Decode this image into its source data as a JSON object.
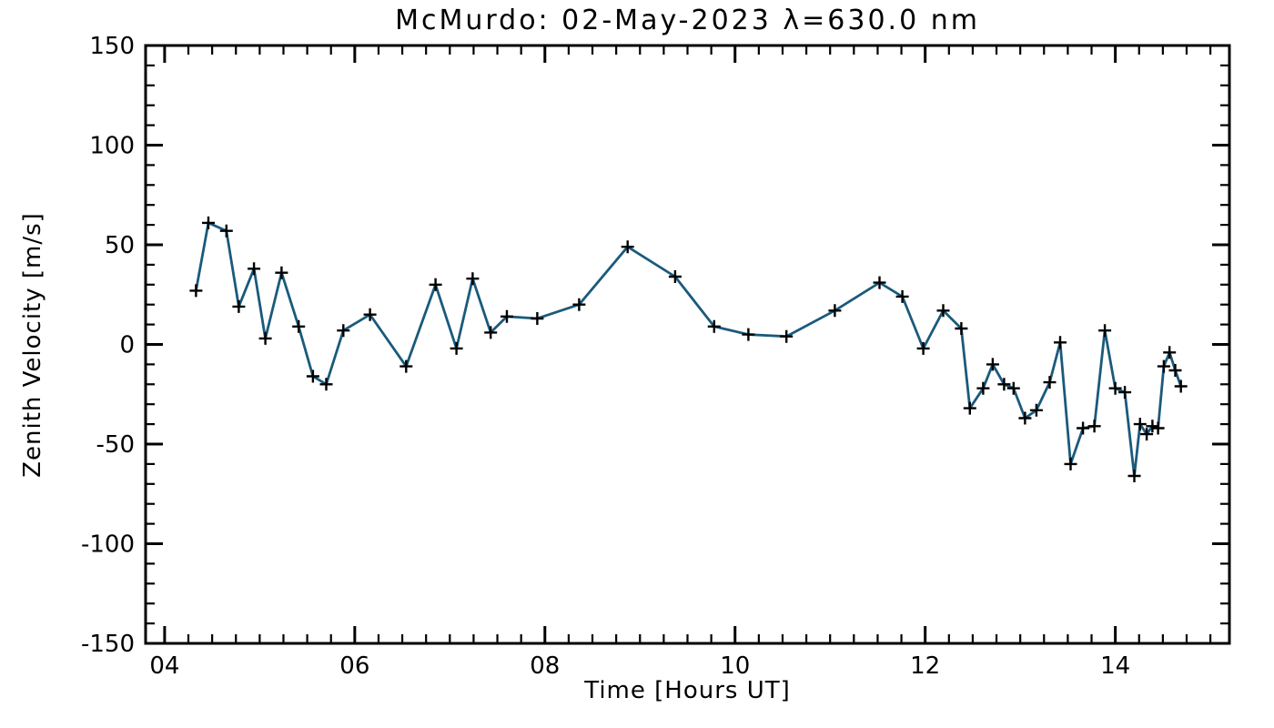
{
  "page": {
    "background_color": "#ffffff",
    "axis_color": "#000000"
  },
  "chart_data": {
    "type": "line",
    "title": "McMurdo: 02-May-2023 λ=630.0 nm",
    "xlabel": "Time [Hours UT]",
    "ylabel": "Zenith Velocity [m/s]",
    "xlim": [
      3.8,
      15.2
    ],
    "ylim": [
      -150,
      150
    ],
    "grid": false,
    "legend_position": "none",
    "line_color": "#1a5a7c",
    "marker": "plus",
    "marker_color": "#000000",
    "xticks": {
      "major": [
        4,
        6,
        8,
        10,
        12,
        14
      ],
      "labels": [
        "04",
        "06",
        "08",
        "10",
        "12",
        "14"
      ],
      "minor_interval": 0.25
    },
    "yticks": {
      "major": [
        -150,
        -100,
        -50,
        0,
        50,
        100,
        150
      ],
      "labels": [
        "-150",
        "-100",
        "-50",
        "0",
        "50",
        "100",
        "150"
      ],
      "minor_interval": 10
    },
    "series": [
      {
        "name": "zenith-velocity",
        "x": [
          4.33,
          4.46,
          4.65,
          4.78,
          4.94,
          5.06,
          5.23,
          5.41,
          5.56,
          5.7,
          5.88,
          6.16,
          6.54,
          6.85,
          7.07,
          7.24,
          7.43,
          7.6,
          7.92,
          8.36,
          8.87,
          9.37,
          9.78,
          10.14,
          10.54,
          11.05,
          11.52,
          11.76,
          11.98,
          12.19,
          12.38,
          12.47,
          12.61,
          12.71,
          12.83,
          12.93,
          13.05,
          13.17,
          13.31,
          13.42,
          13.53,
          13.66,
          13.78,
          13.89,
          14.0,
          14.1,
          14.2,
          14.26,
          14.33,
          14.39,
          14.45,
          14.51,
          14.57,
          14.63,
          14.69
        ],
        "y": [
          27,
          61,
          57,
          19,
          38,
          3,
          36,
          9,
          -16,
          -20,
          7,
          15,
          -11,
          30,
          -2,
          33,
          6,
          14,
          13,
          20,
          49,
          34,
          9,
          5,
          4,
          17,
          31,
          24,
          -2,
          17,
          8,
          -32,
          -22,
          -10,
          -20,
          -22,
          -37,
          -33,
          -19,
          1,
          -60,
          -42,
          -41,
          7,
          -22,
          -24,
          -66,
          -40,
          -45,
          -41,
          -42,
          -11,
          -4,
          -13,
          -21
        ]
      }
    ]
  }
}
